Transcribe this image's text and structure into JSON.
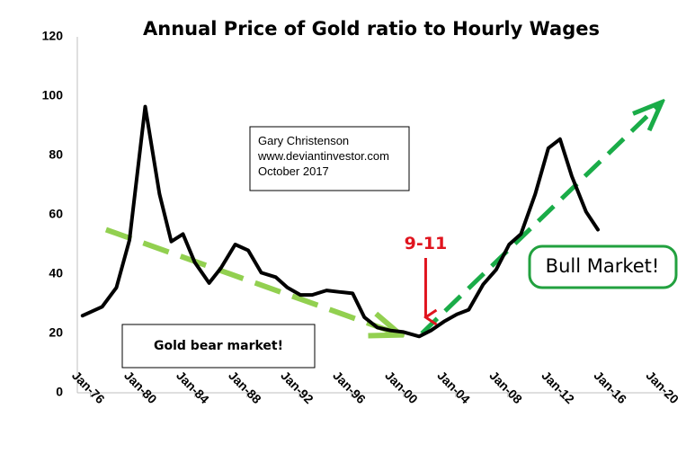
{
  "chart_data": {
    "type": "line",
    "title": "Annual Price of Gold ratio to Hourly Wages",
    "xlabel": "",
    "ylabel": "",
    "ylim": [
      0,
      120
    ],
    "yticks": [
      0,
      20,
      40,
      60,
      80,
      100,
      120
    ],
    "xlim": [
      1975,
      2020
    ],
    "xticks": [
      {
        "year": 1976,
        "label": "Jan-76"
      },
      {
        "year": 1980,
        "label": "Jan-80"
      },
      {
        "year": 1984,
        "label": "Jan-84"
      },
      {
        "year": 1988,
        "label": "Jan-88"
      },
      {
        "year": 1992,
        "label": "Jan-92"
      },
      {
        "year": 1996,
        "label": "Jan-96"
      },
      {
        "year": 2000,
        "label": "Jan-00"
      },
      {
        "year": 2004,
        "label": "Jan-04"
      },
      {
        "year": 2008,
        "label": "Jan-08"
      },
      {
        "year": 2012,
        "label": "Jan-12"
      },
      {
        "year": 2016,
        "label": "Jan-16"
      },
      {
        "year": 2020,
        "label": "Jan-20"
      }
    ],
    "grid": false,
    "series": [
      {
        "color": "#000000",
        "x": [
          1975.4,
          1976.9,
          1978,
          1979,
          1980.2,
          1981.3,
          1982.2,
          1983.1,
          1984,
          1985.1,
          1986,
          1987.1,
          1988.1,
          1989.1,
          1990.2,
          1991.1,
          1992.1,
          1993,
          1994.1,
          1995.1,
          1996.1,
          1997,
          1998,
          1999,
          2000,
          2001.2,
          2002.1,
          2003.1,
          2004.1,
          2005,
          2006.1,
          2007.1,
          2008.1,
          2009,
          2010.1,
          2011.1,
          2012,
          2012.9,
          2014,
          2014.9
        ],
        "y": [
          26,
          29,
          35.5,
          51.5,
          96.5,
          67,
          51,
          53.5,
          44,
          37,
          42,
          50,
          48,
          40.5,
          39,
          35.5,
          33,
          33,
          34.5,
          34,
          33.5,
          25.5,
          22,
          21,
          20.5,
          19,
          21,
          24,
          26.5,
          28,
          36.5,
          41.5,
          50,
          53.5,
          67,
          82.5,
          85.5,
          73,
          61,
          55
        ]
      }
    ],
    "annotations": [
      {
        "text": "Gary Christenson"
      },
      {
        "text": "www.deviantinvestor.com"
      },
      {
        "text": "October 2017"
      },
      {
        "text": "Gold bear market!"
      },
      {
        "text": "Bull Market!"
      },
      {
        "text": "9-11",
        "x": 2001.7,
        "color": "#e0141e"
      }
    ],
    "trend_arrows": [
      {
        "name": "bear-trend",
        "color": "#92d050",
        "from": [
          1977.2,
          55
        ],
        "to": [
          1999.8,
          19.5
        ]
      },
      {
        "name": "bull-trend",
        "color": "#1aac48",
        "from": [
          2001.4,
          20
        ],
        "to": [
          2019.8,
          98
        ]
      }
    ],
    "colors": {
      "line": "#000000",
      "axis": "#bfbfbf",
      "bear_arrow": "#92d050",
      "bull_arrow": "#1aac48",
      "bull_box_border": "#22a13f",
      "marker": "#e0141e"
    }
  }
}
